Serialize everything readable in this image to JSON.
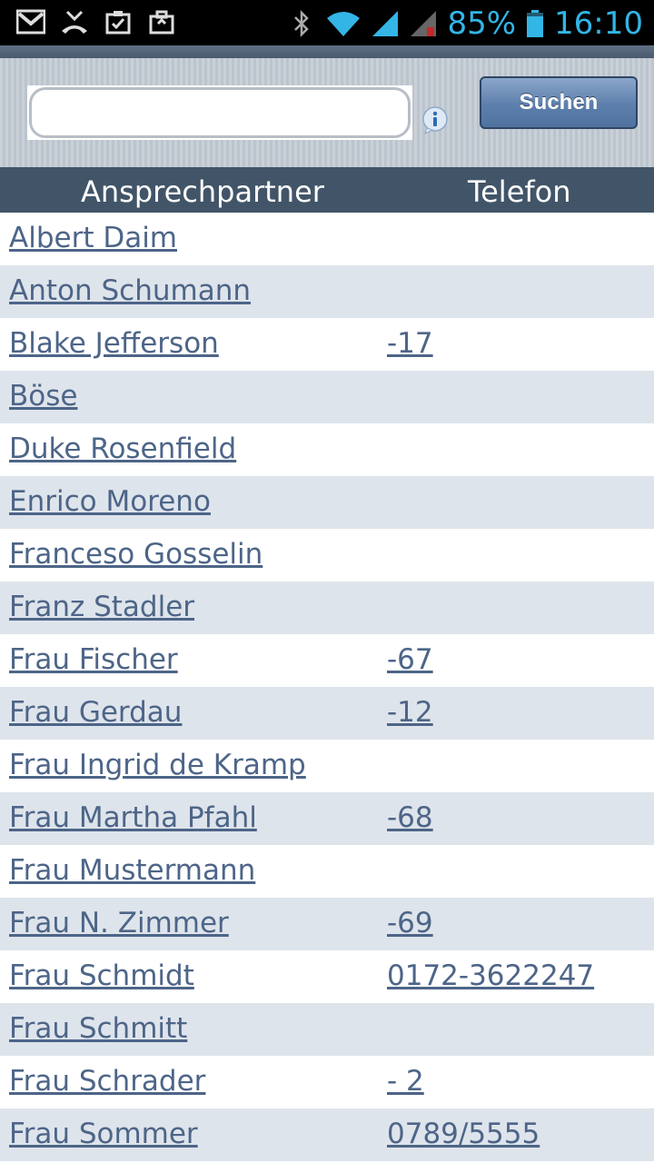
{
  "statusbar": {
    "battery_percent": "85%",
    "time": "16:10",
    "accent_color": "#33b5e5",
    "left_icons": [
      "gmail-icon",
      "missed-call-icon",
      "clipboard-check-icon",
      "briefcase-icon"
    ],
    "right_icons": [
      "bluetooth-icon",
      "wifi-icon",
      "signal-icon",
      "signal-no-data-icon",
      "battery-icon"
    ]
  },
  "search": {
    "value": "",
    "placeholder": "",
    "button_label": "Suchen",
    "info_icon": "info-icon"
  },
  "table": {
    "columns": [
      "Ansprechpartner",
      "Telefon"
    ],
    "rows": [
      {
        "name": "Albert Daim",
        "phone": ""
      },
      {
        "name": "Anton Schumann",
        "phone": ""
      },
      {
        "name": "Blake Jefferson",
        "phone": "-17"
      },
      {
        "name": "Böse",
        "phone": ""
      },
      {
        "name": "Duke Rosenfield",
        "phone": ""
      },
      {
        "name": "Enrico Moreno",
        "phone": ""
      },
      {
        "name": "Franceso Gosselin",
        "phone": ""
      },
      {
        "name": "Franz Stadler",
        "phone": ""
      },
      {
        "name": "Frau Fischer",
        "phone": "-67"
      },
      {
        "name": "Frau Gerdau",
        "phone": "-12"
      },
      {
        "name": "Frau Ingrid de Kramp",
        "phone": ""
      },
      {
        "name": "Frau Martha Pfahl",
        "phone": "-68"
      },
      {
        "name": "Frau Mustermann",
        "phone": ""
      },
      {
        "name": "Frau N. Zimmer",
        "phone": "-69"
      },
      {
        "name": "Frau Schmidt",
        "phone": "0172-3622247"
      },
      {
        "name": "Frau Schmitt",
        "phone": ""
      },
      {
        "name": "Frau Schrader",
        "phone": "- 2"
      },
      {
        "name": "Frau Sommer",
        "phone": "0789/5555"
      }
    ]
  },
  "colors": {
    "header_bg": "#425568",
    "row_alt_bg": "#dee4eb",
    "link_color": "#4d6588",
    "button_bg": "#5d7fac"
  }
}
